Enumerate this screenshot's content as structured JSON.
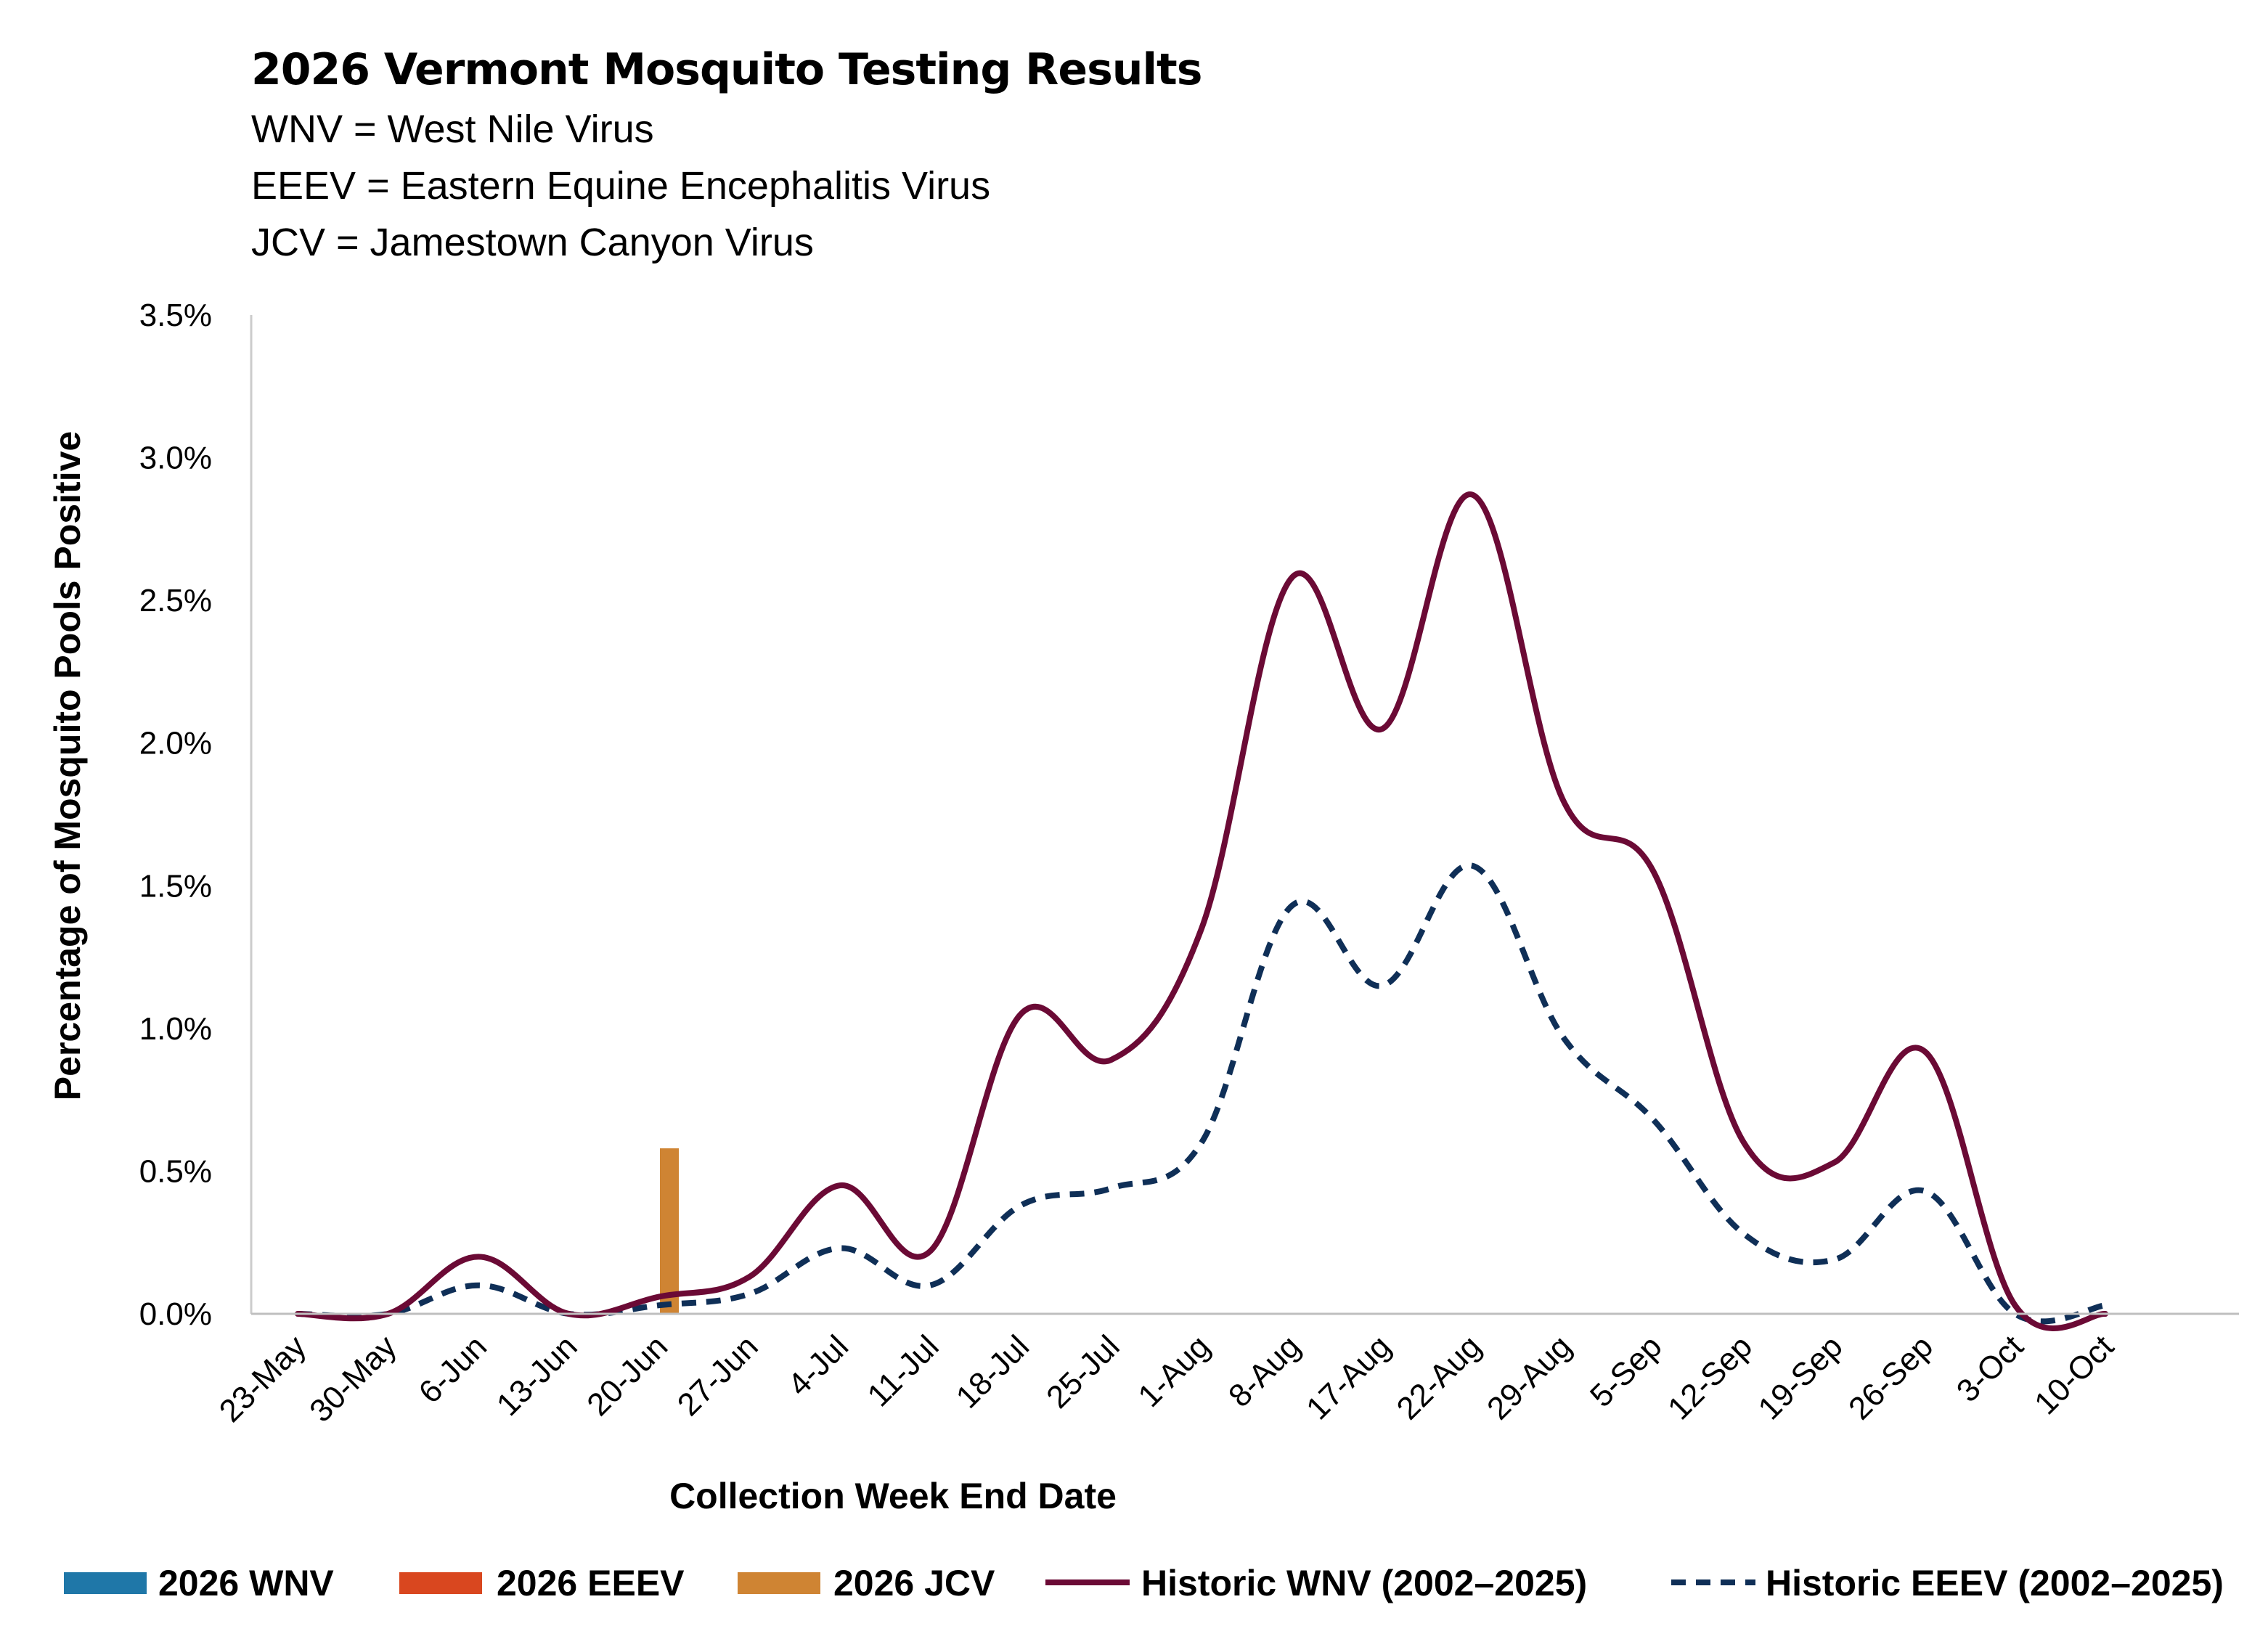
{
  "chart_data": {
    "type": "line",
    "title": "2026 Vermont Mosquito Testing Results",
    "subtitle_lines": [
      "WNV = West Nile Virus",
      "EEEV = Eastern Equine Encephalitis Virus",
      "JCV = Jamestown Canyon Virus"
    ],
    "xlabel": "Collection Week End Date",
    "ylabel": "Percentage of Mosquito Pools Positive",
    "categories": [
      "23-May",
      "30-May",
      "6-Jun",
      "13-Jun",
      "20-Jun",
      "27-Jun",
      "4-Jul",
      "11-Jul",
      "18-Jul",
      "25-Jul",
      "1-Aug",
      "8-Aug",
      "17-Aug",
      "22-Aug",
      "29-Aug",
      "5-Sep",
      "12-Sep",
      "19-Sep",
      "26-Sep",
      "3-Oct",
      "10-Oct"
    ],
    "ylim": [
      0,
      3.5
    ],
    "y_ticks": [
      "0.0%",
      "0.5%",
      "1.0%",
      "1.5%",
      "2.0%",
      "2.5%",
      "3.0%",
      "3.5%"
    ],
    "y_tick_values": [
      0,
      0.5,
      1.0,
      1.5,
      2.0,
      2.5,
      3.0,
      3.5
    ],
    "grid": false,
    "legend_position": "bottom",
    "bar_series": [
      {
        "name": "2026 WNV",
        "color": "#1f77a8",
        "values": [
          0,
          0,
          0,
          0,
          0,
          0,
          0,
          0,
          0,
          0,
          0,
          0,
          0,
          0,
          0,
          0,
          0,
          0,
          0,
          0,
          0
        ]
      },
      {
        "name": "2026 EEEV",
        "color": "#d9471f",
        "values": [
          0,
          0,
          0,
          0,
          0,
          0,
          0,
          0,
          0,
          0,
          0,
          0,
          0,
          0,
          0,
          0,
          0,
          0,
          0,
          0,
          0
        ]
      },
      {
        "name": "2026 JCV",
        "color": "#cf8433",
        "values": [
          0,
          0,
          0,
          0,
          0.58,
          0,
          0,
          0,
          0,
          0,
          0,
          0,
          0,
          0,
          0,
          0,
          0,
          0,
          0,
          0,
          0
        ]
      }
    ],
    "line_series": [
      {
        "name": "Historic WNV (2002–2025)",
        "color": "#6b0a35",
        "style": "solid",
        "values": [
          0.0,
          0.0,
          0.2,
          0.0,
          0.06,
          0.13,
          0.45,
          0.22,
          1.05,
          0.89,
          1.35,
          2.58,
          2.05,
          2.87,
          1.8,
          1.55,
          0.6,
          0.53,
          0.92,
          0.03,
          0.0
        ]
      },
      {
        "name": "Historic EEEV (2002–2025)",
        "color": "#0f2f57",
        "style": "dashed",
        "values": [
          0.0,
          0.0,
          0.1,
          0.0,
          0.03,
          0.07,
          0.23,
          0.1,
          0.38,
          0.44,
          0.6,
          1.43,
          1.15,
          1.57,
          0.97,
          0.68,
          0.28,
          0.19,
          0.43,
          0.0,
          0.03
        ]
      }
    ]
  }
}
